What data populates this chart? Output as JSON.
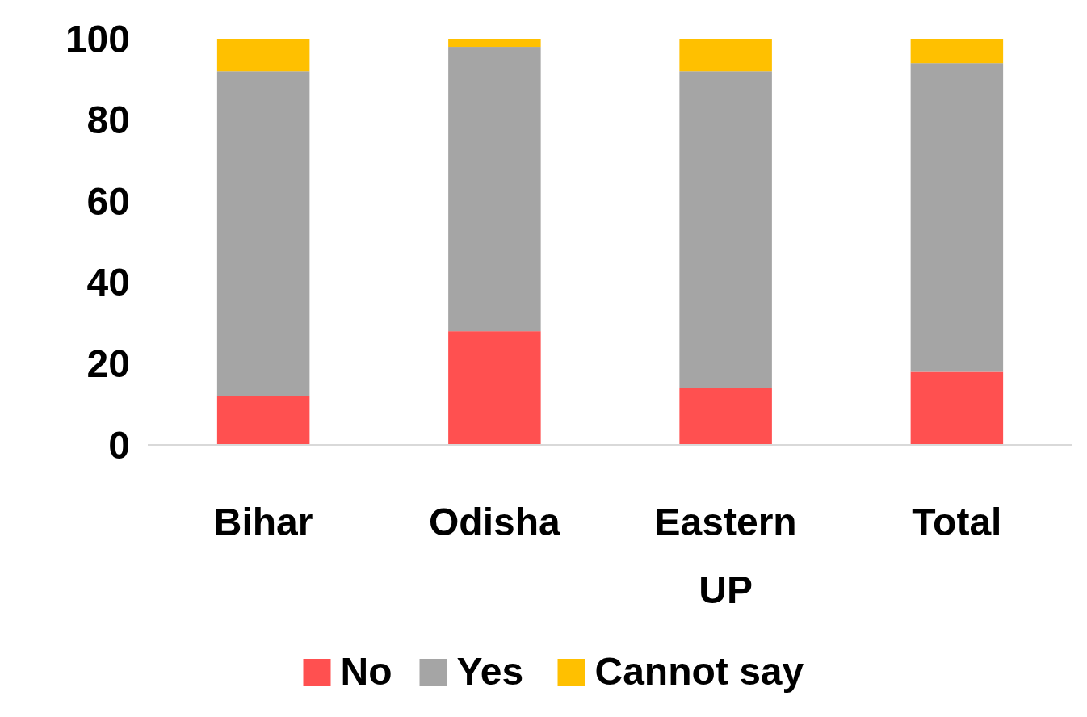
{
  "chart_data": {
    "type": "bar",
    "stacked": true,
    "categories": [
      "Bihar",
      "Odisha",
      "Eastern UP",
      "Total"
    ],
    "series": [
      {
        "name": "No",
        "color": "#ff5050",
        "values": [
          12,
          28,
          14,
          18
        ]
      },
      {
        "name": "Yes",
        "color": "#a5a5a5",
        "values": [
          80,
          70,
          78,
          76
        ]
      },
      {
        "name": "Cannot say",
        "color": "#ffc000",
        "values": [
          8,
          2,
          8,
          6
        ]
      }
    ],
    "ylim": [
      0,
      100
    ],
    "yticks": [
      0,
      20,
      40,
      60,
      80,
      100
    ],
    "grid": false,
    "legend": "bottom"
  }
}
